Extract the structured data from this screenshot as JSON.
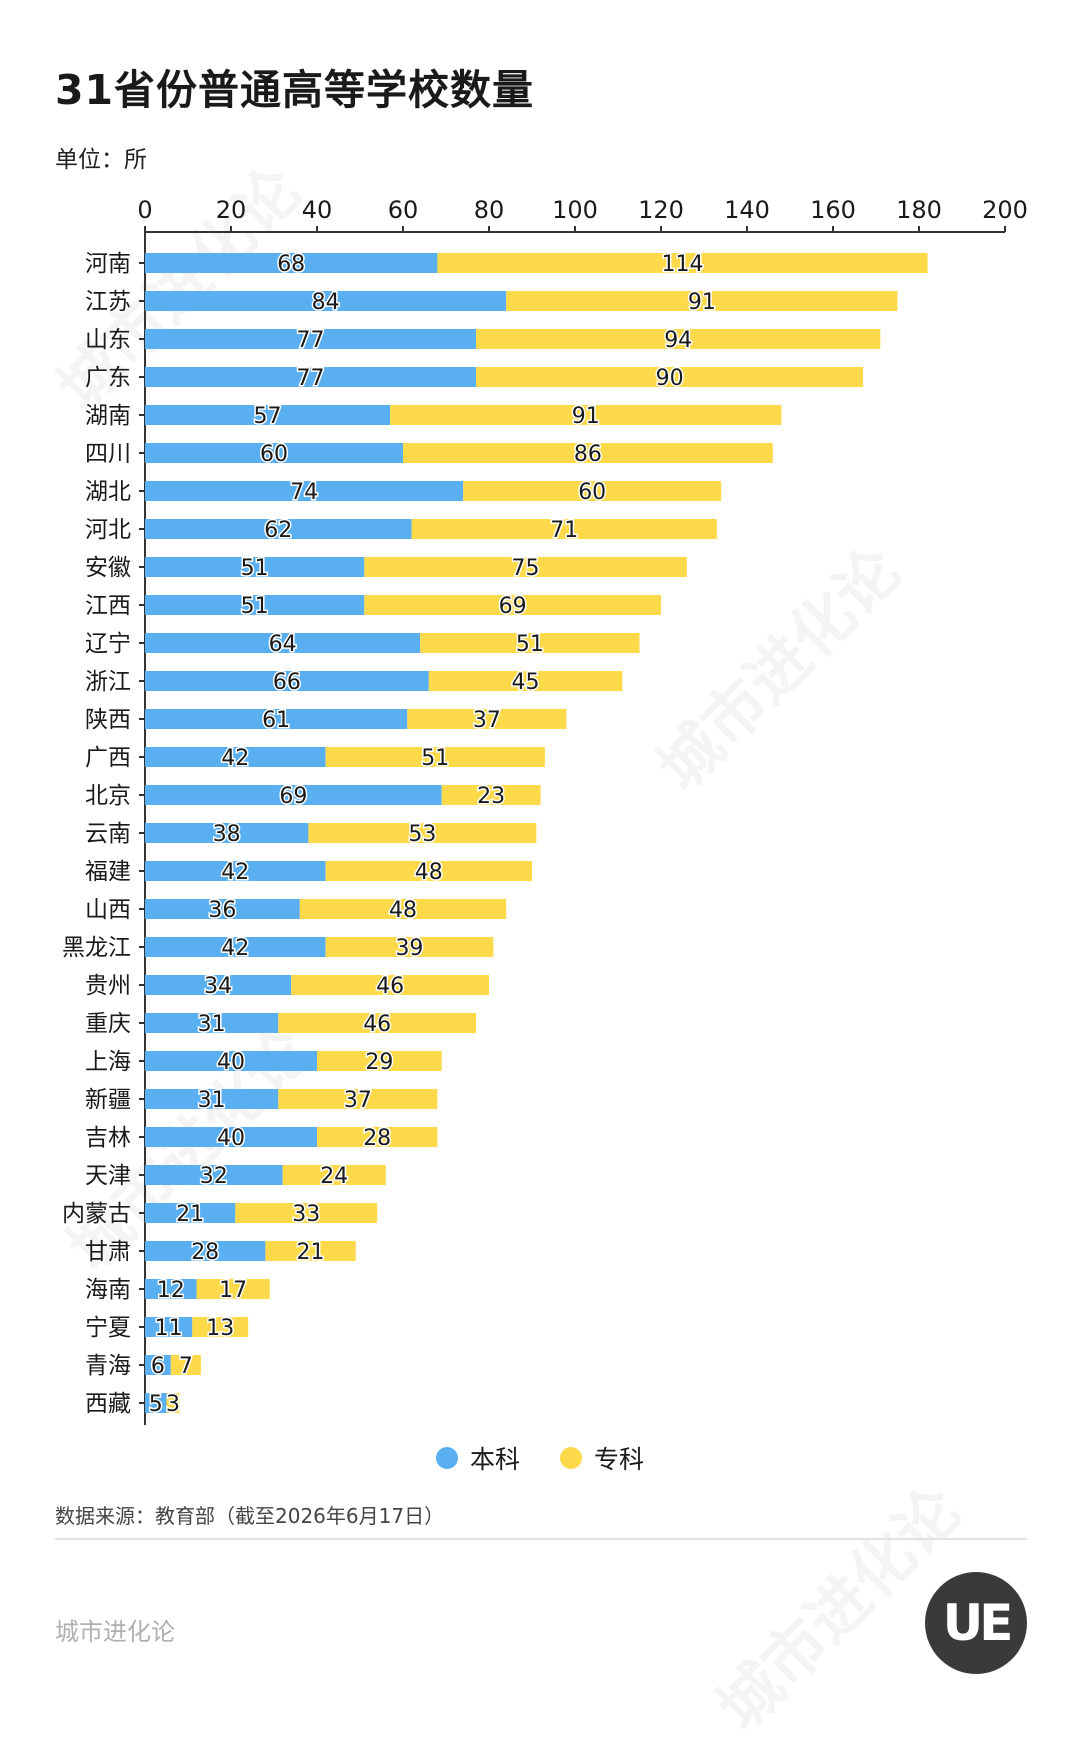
{
  "title": "31省份普通高等学校数量",
  "unit": "单位：所",
  "source": "数据来源：教育部（截至2026年6月17日）",
  "brand": "城市进化论",
  "watermark": "城市进化论",
  "logo_text": "UE",
  "colors": {
    "benke": "#5aaff0",
    "zhuanke": "#fed94a",
    "axis": "#333333"
  },
  "chart_data": {
    "type": "bar",
    "orientation": "horizontal",
    "stacked": true,
    "xlim": [
      0,
      200
    ],
    "xticks": [
      "0",
      "20",
      "40",
      "60",
      "80",
      "100",
      "120",
      "140",
      "160",
      "180",
      "200"
    ],
    "legend_position": "bottom",
    "categories": [
      "河南",
      "江苏",
      "山东",
      "广东",
      "湖南",
      "四川",
      "湖北",
      "河北",
      "安徽",
      "江西",
      "辽宁",
      "浙江",
      "陕西",
      "广西",
      "北京",
      "云南",
      "福建",
      "山西",
      "黑龙江",
      "贵州",
      "重庆",
      "上海",
      "新疆",
      "吉林",
      "天津",
      "内蒙古",
      "甘肃",
      "海南",
      "宁夏",
      "青海",
      "西藏"
    ],
    "series": [
      {
        "name": "本科",
        "values": [
          68,
          84,
          77,
          77,
          57,
          60,
          74,
          62,
          51,
          51,
          64,
          66,
          61,
          42,
          69,
          38,
          42,
          36,
          42,
          34,
          31,
          40,
          31,
          40,
          32,
          21,
          28,
          12,
          11,
          6,
          5
        ]
      },
      {
        "name": "专科",
        "values": [
          114,
          91,
          94,
          90,
          91,
          86,
          60,
          71,
          75,
          69,
          51,
          45,
          37,
          51,
          23,
          53,
          48,
          48,
          39,
          46,
          46,
          29,
          37,
          28,
          24,
          33,
          21,
          17,
          13,
          7,
          3
        ]
      }
    ]
  }
}
